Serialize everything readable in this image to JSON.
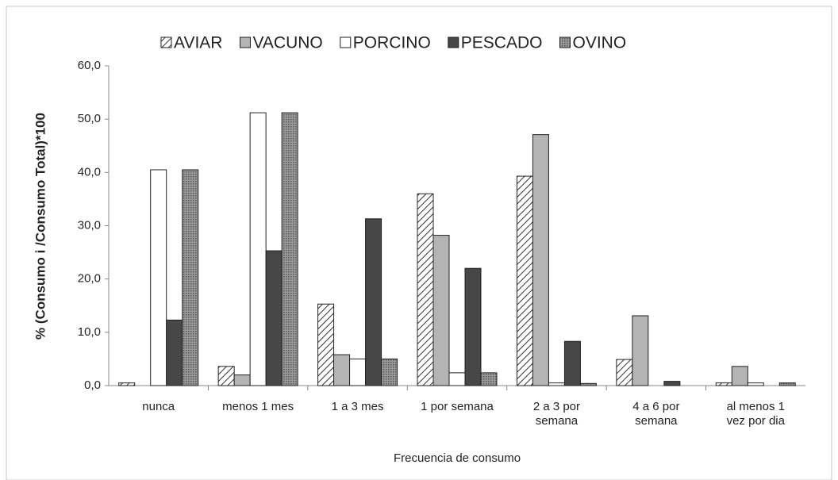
{
  "chart_data": {
    "type": "bar",
    "y_label": "% (Consumo i /Consumo Total)*100",
    "x_label": "Frecuencia de consumo",
    "categories": [
      "nunca",
      "menos 1 mes",
      "1 a 3 mes",
      "1 por semana",
      "2 a 3 por\nsemana",
      "4 a 6 por\nsemana",
      "al menos 1\nvez por dia"
    ],
    "series": [
      {
        "name": "AVIAR",
        "color": "#ffffff",
        "pattern": "hatch",
        "values": [
          0.5,
          3.6,
          15.3,
          36.0,
          39.3,
          4.9,
          0.5
        ]
      },
      {
        "name": "VACUNO",
        "color": "#b4b4b4",
        "pattern": null,
        "values": [
          0,
          2.0,
          5.8,
          28.2,
          47.1,
          13.1,
          3.6
        ]
      },
      {
        "name": "PORCINO",
        "color": "#ffffff",
        "pattern": null,
        "values": [
          40.5,
          51.2,
          5.0,
          2.4,
          0.5,
          0,
          0.5
        ]
      },
      {
        "name": "PESCADO",
        "color": "#474747",
        "pattern": null,
        "values": [
          12.3,
          25.3,
          31.3,
          22.0,
          8.3,
          0.8,
          0
        ]
      },
      {
        "name": "OVINO",
        "color": "#8a8a8a",
        "pattern": "dots",
        "values": [
          40.5,
          51.2,
          5.0,
          2.4,
          0.4,
          0,
          0.5
        ]
      }
    ],
    "ylim": [
      0,
      60
    ],
    "yticks": [
      {
        "value": 0,
        "label": "0,0"
      },
      {
        "value": 10,
        "label": "10,0"
      },
      {
        "value": 20,
        "label": "20,0"
      },
      {
        "value": 30,
        "label": "30,0"
      },
      {
        "value": 40,
        "label": "40,0"
      },
      {
        "value": 50,
        "label": "50,0"
      },
      {
        "value": 60,
        "label": "60,0"
      }
    ],
    "legend": "top"
  }
}
